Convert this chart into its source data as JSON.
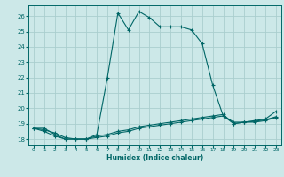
{
  "xlabel": "Humidex (Indice chaleur)",
  "background_color": "#cce8e8",
  "grid_color": "#aacece",
  "line_color": "#006666",
  "xlim": [
    -0.5,
    23.5
  ],
  "ylim": [
    17.6,
    26.7
  ],
  "xticks": [
    0,
    1,
    2,
    3,
    4,
    5,
    6,
    7,
    8,
    9,
    10,
    11,
    12,
    13,
    14,
    15,
    16,
    17,
    18,
    19,
    20,
    21,
    22,
    23
  ],
  "yticks": [
    18,
    19,
    20,
    21,
    22,
    23,
    24,
    25,
    26
  ],
  "line1_x": [
    0,
    1,
    2,
    3,
    4,
    5,
    6,
    7,
    8,
    9,
    10,
    11,
    12,
    13,
    14,
    15,
    16,
    17,
    18,
    19,
    20,
    21,
    22,
    23
  ],
  "line1_y": [
    18.7,
    18.7,
    18.3,
    18.0,
    18.0,
    18.0,
    18.3,
    22.0,
    26.2,
    25.1,
    26.3,
    25.9,
    25.3,
    25.3,
    25.3,
    25.1,
    24.2,
    21.5,
    19.5,
    19.1,
    19.1,
    19.2,
    19.3,
    19.8
  ],
  "line2_x": [
    0,
    1,
    2,
    3,
    4,
    5,
    6,
    7,
    8,
    9,
    10,
    11,
    12,
    13,
    14,
    15,
    16,
    17,
    18,
    19,
    20,
    21,
    22,
    23
  ],
  "line2_y": [
    18.7,
    18.5,
    18.2,
    18.0,
    18.0,
    18.0,
    18.1,
    18.2,
    18.4,
    18.5,
    18.7,
    18.8,
    18.9,
    19.0,
    19.1,
    19.2,
    19.3,
    19.4,
    19.5,
    19.0,
    19.1,
    19.1,
    19.2,
    19.4
  ],
  "line3_x": [
    0,
    1,
    2,
    3,
    4,
    5,
    6,
    7,
    8,
    9,
    10,
    11,
    12,
    13,
    14,
    15,
    16,
    17,
    18,
    19,
    20,
    21,
    22,
    23
  ],
  "line3_y": [
    18.7,
    18.6,
    18.4,
    18.1,
    18.0,
    18.0,
    18.2,
    18.3,
    18.5,
    18.6,
    18.8,
    18.9,
    19.0,
    19.1,
    19.2,
    19.3,
    19.4,
    19.5,
    19.6,
    19.0,
    19.1,
    19.15,
    19.25,
    19.45
  ]
}
